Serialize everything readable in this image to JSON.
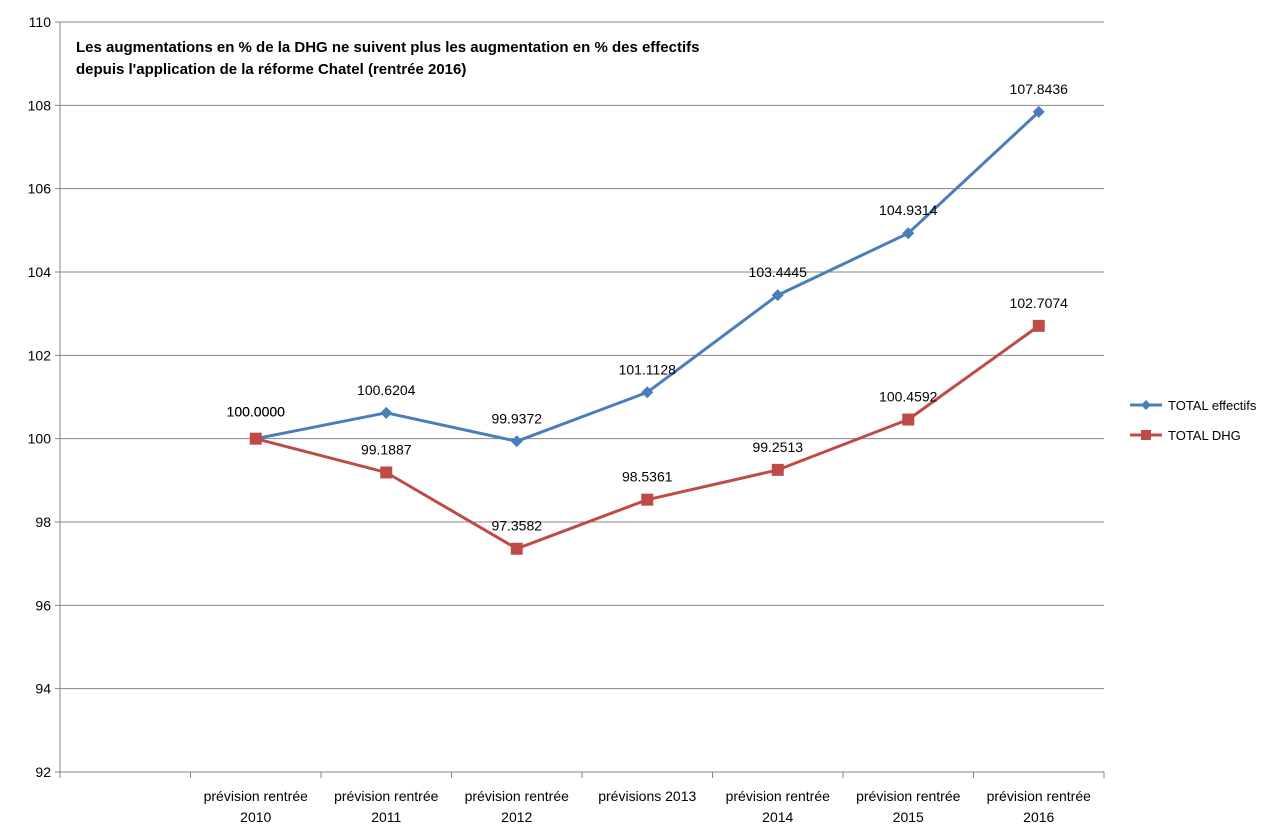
{
  "chart_data": {
    "type": "line",
    "title": "Les augmentations en % de la DHG ne suivent plus les augmentation en % des effectifs depuis l'application de la réforme Chatel (rentrée 2016)",
    "title_lines": [
      "Les augmentations en % de la DHG ne suivent plus les augmentation en % des effectifs",
      "depuis l'application de la réforme Chatel (rentrée 2016)"
    ],
    "categories": [
      [
        "prévision rentrée",
        "2010"
      ],
      [
        "prévision rentrée",
        "2011"
      ],
      [
        "prévision rentrée",
        "2012"
      ],
      [
        "prévisions 2013",
        ""
      ],
      [
        "prévision  rentrée",
        "2014"
      ],
      [
        "prévision rentrée",
        "2015"
      ],
      [
        "prévision  rentrée",
        "2016"
      ]
    ],
    "ylim": [
      92,
      110
    ],
    "yticks": [
      "92",
      "94",
      "96",
      "98",
      "100",
      "102",
      "104",
      "106",
      "108",
      "110"
    ],
    "grid": true,
    "legend_position": "right",
    "series": [
      {
        "name": "TOTAL effectifs",
        "color": "#4a7ebb",
        "marker": "diamond",
        "values": [
          100.0,
          100.6204,
          99.9372,
          101.1128,
          103.4445,
          104.9314,
          107.8436
        ],
        "labels": [
          "100.0000",
          "100.6204",
          "99.9372",
          "101.1128",
          "103.4445",
          "104.9314",
          "107.8436"
        ]
      },
      {
        "name": "TOTAL DHG",
        "color": "#be4b48",
        "marker": "square",
        "values": [
          100.0,
          99.1887,
          97.3582,
          98.5361,
          99.2513,
          100.4592,
          102.7074
        ],
        "labels": [
          "100.0000",
          "99.1887",
          "97.3582",
          "98.5361",
          "99.2513",
          "100.4592",
          "102.7074"
        ]
      }
    ]
  }
}
